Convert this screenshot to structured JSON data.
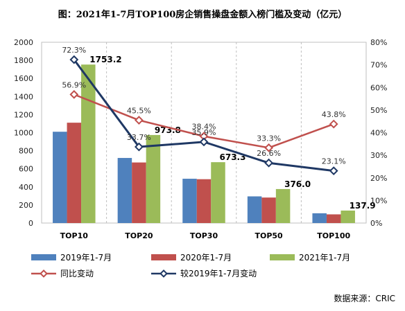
{
  "title": "图：2021年1-7月TOP100房企销售操盘金额入榜门槛及变动（亿元）",
  "source": "数据来源：CRIC",
  "chart_data": {
    "type": "bar",
    "categories": [
      "TOP10",
      "TOP20",
      "TOP30",
      "TOP50",
      "TOP100"
    ],
    "series": [
      {
        "name": "2019年1-7月",
        "type": "bar",
        "axis": "left",
        "color": "#4f81bd",
        "values": [
          1010,
          720,
          490,
          295,
          108
        ]
      },
      {
        "name": "2020年1-7月",
        "type": "bar",
        "axis": "left",
        "color": "#c0504d",
        "values": [
          1110,
          670,
          485,
          282,
          96
        ]
      },
      {
        "name": "2021年1-7月",
        "type": "bar",
        "axis": "left",
        "color": "#9bbb59",
        "values": [
          1753.2,
          973.8,
          673.3,
          376.0,
          137.9
        ],
        "labels": [
          "1753.2",
          "973.8",
          "673.3",
          "376.0",
          "137.9"
        ]
      },
      {
        "name": "同比变动",
        "type": "line",
        "axis": "right",
        "color": "#c0504d",
        "values": [
          56.9,
          45.5,
          38.4,
          33.3,
          43.8
        ],
        "labels": [
          "56.9%",
          "45.5%",
          "38.4%",
          "33.3%",
          "43.8%"
        ]
      },
      {
        "name": "较2019年1-7月变动",
        "type": "line",
        "axis": "right",
        "color": "#1f3864",
        "values": [
          72.3,
          33.7,
          35.9,
          26.6,
          23.1
        ],
        "labels": [
          "72.3%",
          "33.7%",
          "35.9%",
          "26.6%",
          "23.1%"
        ]
      }
    ],
    "y_left": {
      "min": 0,
      "max": 2000,
      "step": 200,
      "ticks": [
        "0",
        "200",
        "400",
        "600",
        "800",
        "1000",
        "1200",
        "1400",
        "1600",
        "1800",
        "2000"
      ]
    },
    "y_right": {
      "min": 0,
      "max": 80,
      "step": 10,
      "ticks": [
        "0%",
        "10%",
        "20%",
        "30%",
        "40%",
        "50%",
        "60%",
        "70%",
        "80%"
      ]
    },
    "grid": "vertical-dashed",
    "legend_position": "bottom"
  }
}
